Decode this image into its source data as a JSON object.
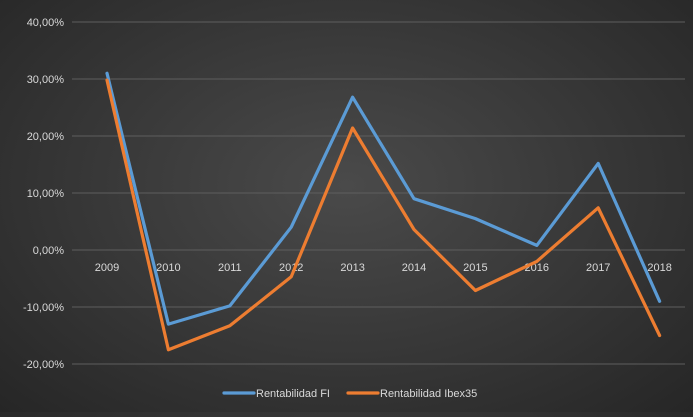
{
  "chart_data": {
    "type": "line",
    "categories": [
      "2009",
      "2010",
      "2011",
      "2012",
      "2013",
      "2014",
      "2015",
      "2016",
      "2017",
      "2018"
    ],
    "series": [
      {
        "name": "Rentabilidad FI",
        "color": "#5b9bd5",
        "values": [
          31.0,
          -13.0,
          -9.8,
          4.0,
          26.8,
          9.0,
          5.5,
          0.8,
          15.2,
          -9.0
        ]
      },
      {
        "name": "Rentabilidad Ibex35",
        "color": "#ed7d31",
        "values": [
          29.8,
          -17.5,
          -13.3,
          -4.7,
          21.4,
          3.6,
          -7.1,
          -2.0,
          7.4,
          -15.0
        ]
      }
    ],
    "y_ticks": [
      "40,00%",
      "30,00%",
      "20,00%",
      "10,00%",
      "0,00%",
      "-10,00%",
      "-20,00%"
    ],
    "ylim": [
      -20,
      40
    ],
    "legend_position": "bottom",
    "grid": true
  }
}
